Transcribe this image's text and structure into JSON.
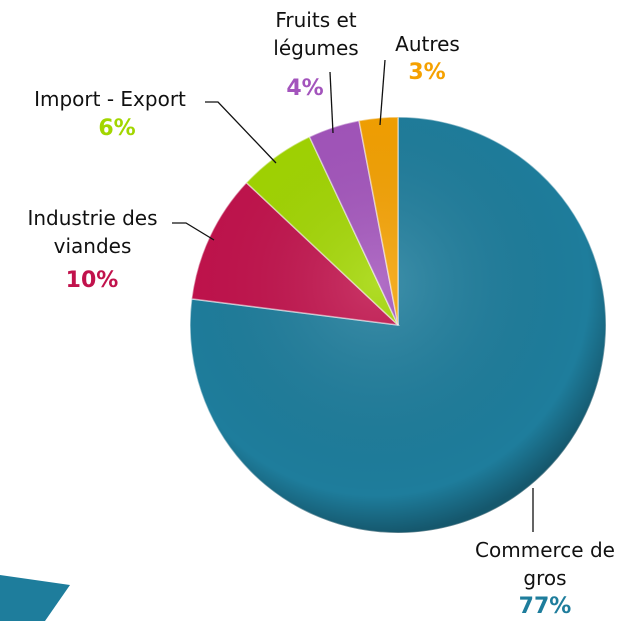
{
  "chart_data": {
    "type": "pie",
    "categories": [
      "Commerce de gros",
      "Industrie des viandes",
      "Import - Export",
      "Fruits et légumes",
      "Autres"
    ],
    "values": [
      77,
      10,
      6,
      4,
      3
    ],
    "value_labels": [
      "77%",
      "10%",
      "6%",
      "4%",
      "3%"
    ],
    "colors": [
      "#1e7d9c",
      "#c1124c",
      "#a2d600",
      "#a354bc",
      "#f5a100"
    ]
  }
}
